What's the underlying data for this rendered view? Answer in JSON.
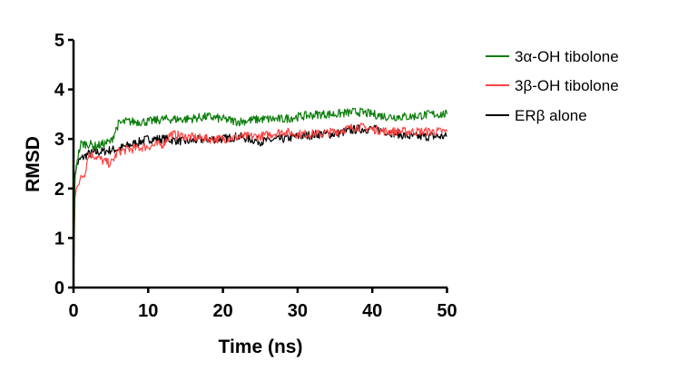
{
  "chart_data": {
    "type": "line",
    "xlabel": "Time (ns)",
    "ylabel": "RMSD",
    "xlim": [
      0,
      50
    ],
    "ylim": [
      0,
      5
    ],
    "xticks": [
      0,
      10,
      20,
      30,
      40,
      50
    ],
    "yticks": [
      0,
      1,
      2,
      3,
      4,
      5
    ],
    "grid": false,
    "legend_position": "top-right",
    "series": [
      {
        "name": "3α-OH tibolone",
        "color": "#0a7d0a",
        "x": [
          0,
          0.2,
          0.5,
          1,
          2,
          3,
          4,
          5,
          6,
          7,
          8,
          10,
          12,
          15,
          18,
          20,
          22,
          25,
          28,
          30,
          33,
          35,
          38,
          40,
          42,
          45,
          48,
          50
        ],
        "y": [
          0,
          2.2,
          2.6,
          2.9,
          2.9,
          2.85,
          2.9,
          2.95,
          3.3,
          3.35,
          3.35,
          3.35,
          3.4,
          3.4,
          3.45,
          3.4,
          3.35,
          3.4,
          3.4,
          3.45,
          3.5,
          3.5,
          3.55,
          3.5,
          3.45,
          3.45,
          3.5,
          3.5
        ]
      },
      {
        "name": "3β-OH tibolone",
        "color": "#ff4444",
        "x": [
          0,
          0.2,
          0.5,
          1,
          1.5,
          2,
          3,
          4,
          5,
          6,
          8,
          10,
          12,
          13,
          15,
          18,
          20,
          23,
          25,
          28,
          30,
          33,
          35,
          38,
          40,
          42,
          45,
          48,
          50
        ],
        "y": [
          0,
          1.8,
          2.1,
          2.2,
          2.3,
          2.7,
          2.65,
          2.55,
          2.5,
          2.75,
          2.8,
          2.85,
          2.9,
          3.1,
          3.05,
          3.0,
          3.0,
          3.05,
          3.05,
          3.15,
          3.1,
          3.1,
          3.15,
          3.25,
          3.2,
          3.15,
          3.15,
          3.15,
          3.15
        ]
      },
      {
        "name": "ERβ alone",
        "color": "#000000",
        "x": [
          0,
          0.2,
          0.5,
          1,
          2,
          4,
          6,
          8,
          10,
          12,
          15,
          18,
          20,
          22,
          25,
          28,
          30,
          33,
          35,
          38,
          40,
          42,
          45,
          48,
          50
        ],
        "y": [
          0,
          2.3,
          2.5,
          2.6,
          2.7,
          2.75,
          2.8,
          2.9,
          3.0,
          3.0,
          2.95,
          3.0,
          3.0,
          3.05,
          2.95,
          3.0,
          3.05,
          3.1,
          3.1,
          3.2,
          3.2,
          3.15,
          3.05,
          3.05,
          3.05
        ]
      }
    ]
  }
}
